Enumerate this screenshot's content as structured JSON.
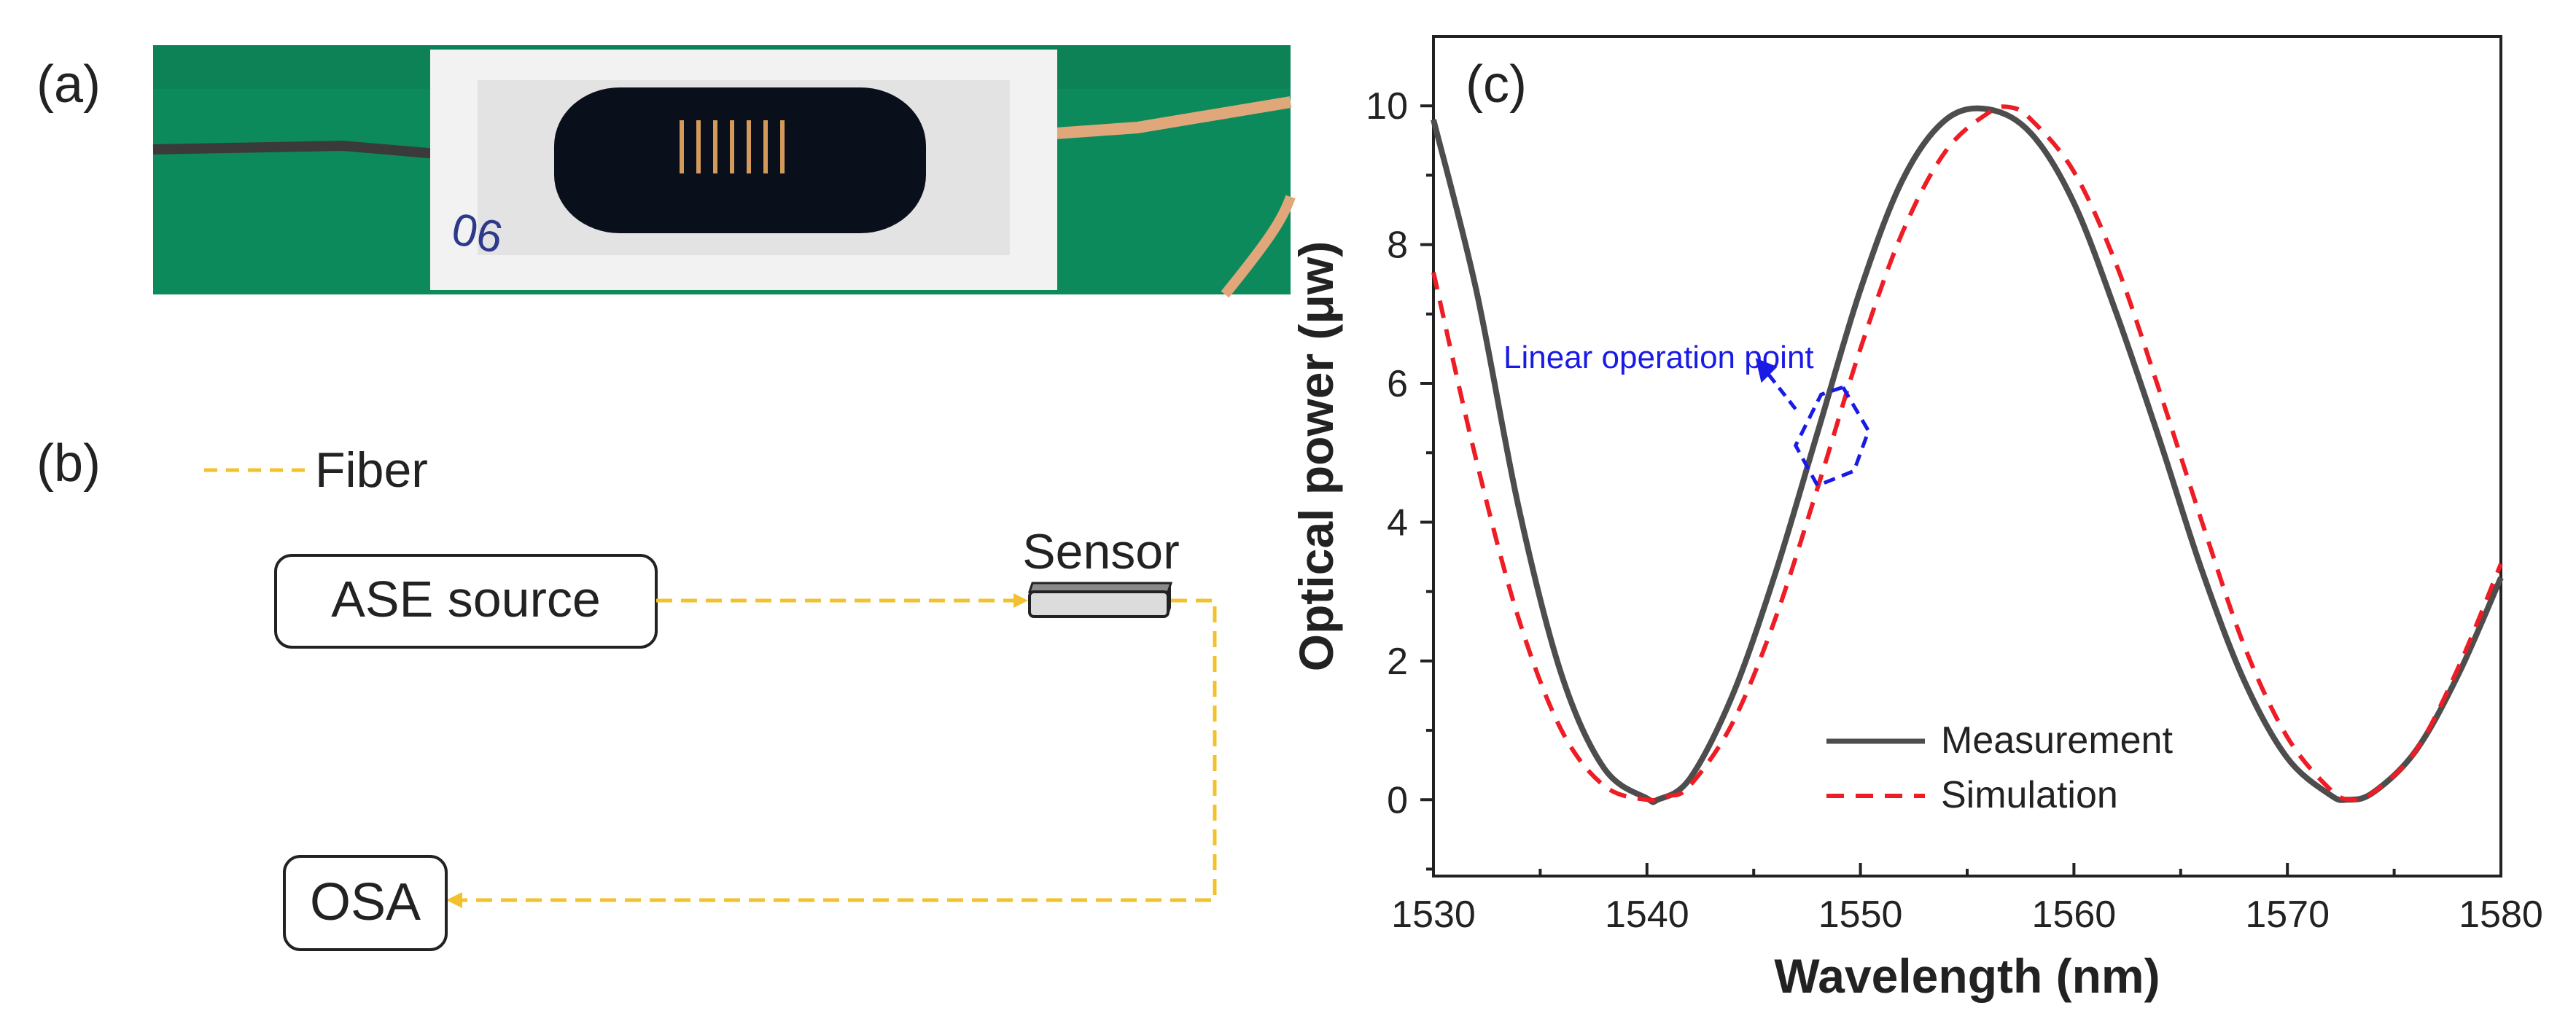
{
  "panels": {
    "a": {
      "label": "(a)",
      "photo_label": "06"
    },
    "b": {
      "label": "(b)",
      "legend_label": "Fiber",
      "sensor_label": "Sensor",
      "source_label": "ASE source",
      "analyzer_label": "OSA"
    },
    "c": {
      "label": "(c)"
    }
  },
  "colors": {
    "fiber": "#f2c12e",
    "measurement": "#4d4d4d",
    "simulation": "#ee1c24",
    "annotation": "#1a1ae6",
    "green_background": "#0d8a5c",
    "sensor_body": "#dcdcdc"
  },
  "chart_data": {
    "type": "line",
    "xlabel": "Wavelength (nm)",
    "ylabel": "Optical power (μw)",
    "xlim": [
      1530,
      1580
    ],
    "ylim": [
      -1.1,
      11
    ],
    "xticks": [
      1530,
      1540,
      1550,
      1560,
      1570,
      1580
    ],
    "yticks": [
      0,
      2,
      4,
      6,
      8,
      10
    ],
    "grid": false,
    "legend_position": "bottom-center",
    "annotation": {
      "text": "Linear operation point",
      "x": 1548.5,
      "y": 5.0
    },
    "series": [
      {
        "name": "Measurement",
        "style": "solid",
        "x": [
          1530,
          1532,
          1534,
          1536,
          1538,
          1540,
          1540.5,
          1542,
          1544,
          1546,
          1548,
          1550,
          1552,
          1554,
          1556,
          1558,
          1560,
          1562,
          1564,
          1566,
          1568,
          1570,
          1572,
          1572.8,
          1574,
          1576,
          1578,
          1580
        ],
        "y": [
          9.8,
          7.35,
          4.2,
          1.8,
          0.45,
          0.02,
          0.0,
          0.3,
          1.5,
          3.25,
          5.3,
          7.35,
          8.95,
          9.8,
          9.95,
          9.6,
          8.6,
          7.0,
          5.2,
          3.3,
          1.7,
          0.6,
          0.07,
          0.0,
          0.1,
          0.7,
          1.8,
          3.2
        ]
      },
      {
        "name": "Simulation",
        "style": "dashed",
        "x": [
          1530,
          1532,
          1534,
          1536,
          1538,
          1540,
          1541,
          1542,
          1544,
          1546,
          1548,
          1550,
          1552,
          1554,
          1556,
          1557,
          1558,
          1560,
          1562,
          1564,
          1566,
          1568,
          1570,
          1572,
          1573,
          1574,
          1576,
          1578,
          1580
        ],
        "y": [
          7.6,
          4.9,
          2.6,
          1.0,
          0.2,
          0.0,
          0.05,
          0.2,
          1.1,
          2.6,
          4.5,
          6.5,
          8.2,
          9.35,
          9.9,
          9.98,
          9.8,
          9.05,
          7.7,
          5.9,
          4.0,
          2.2,
          0.9,
          0.15,
          0.0,
          0.1,
          0.7,
          1.9,
          3.4
        ]
      }
    ]
  }
}
